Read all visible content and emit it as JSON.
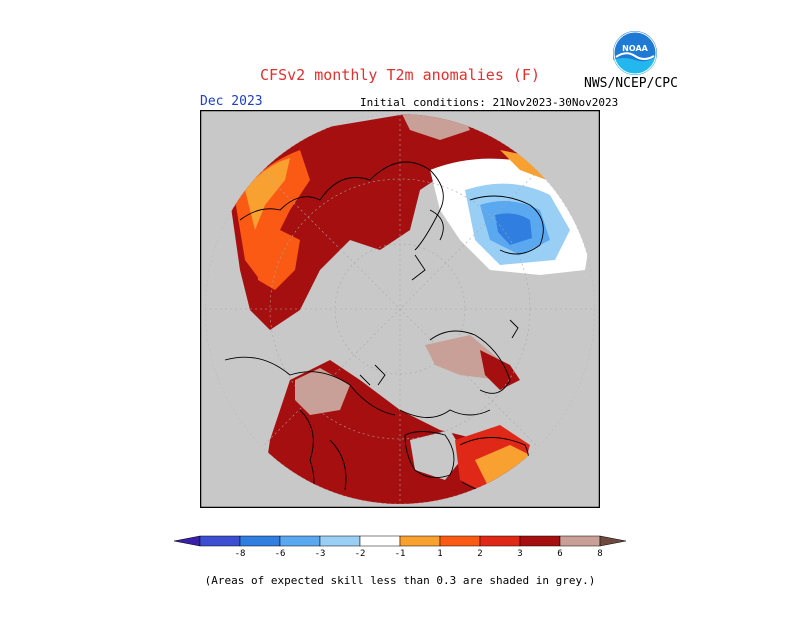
{
  "header": {
    "title": "CFSv2 monthly T2m anomalies (F)",
    "agency": "NWS/NCEP/CPC",
    "month": "Dec 2023",
    "initial_conditions": "Initial conditions: 21Nov2023-30Nov2023",
    "logo_text": "NOAA"
  },
  "colors": {
    "title": "#e03030",
    "month": "#2040c0",
    "grey_land": "#c8c8c8",
    "categories": [
      "#3a1fa8",
      "#3c4fd0",
      "#2f7ee0",
      "#5aa8f0",
      "#9acff5",
      "#ffffff",
      "#f8a030",
      "#fb5a14",
      "#e02818",
      "#a50f0f",
      "#c9a097",
      "#6e4a3e"
    ]
  },
  "legend": {
    "labels": [
      "-8",
      "-6",
      "-3",
      "-2",
      "-1",
      "1",
      "2",
      "3",
      "6",
      "8"
    ]
  },
  "footnote": "(Areas of expected skill less than 0.3 are shaded in grey.)"
}
